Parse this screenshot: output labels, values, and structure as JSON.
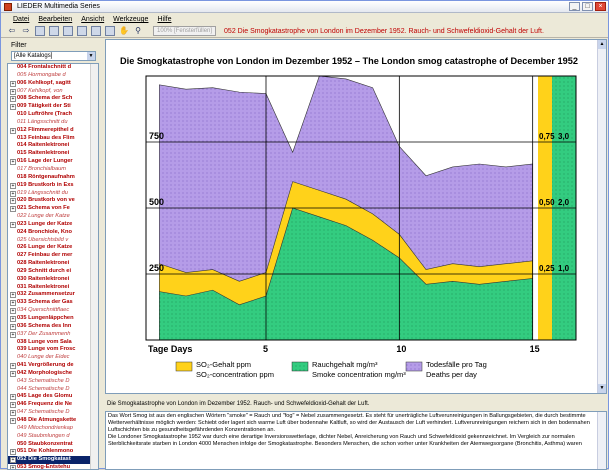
{
  "window": {
    "title": "LIEDER Multimedia Series",
    "controls": [
      "_",
      "□",
      "×"
    ]
  },
  "menu": [
    "Datei",
    "Bearbeiten",
    "Ansicht",
    "Werkzeuge",
    "Hilfe"
  ],
  "toolbar": {
    "zoom": "100% [Fensterfüllen]",
    "breadcrumb": "052 Die Smogkatastrophe von London im Dezember 1952. Rauch- und Schwefeldioxid-Gehalt der Luft."
  },
  "sidebar": {
    "filter_label": "Filter",
    "filter_value": "[Alle Katalogs]",
    "items": [
      {
        "text": "004 Frontalschnitt d",
        "exp": "",
        "style": "b"
      },
      {
        "text": "005 Hormongabe d",
        "exp": "",
        "style": "i"
      },
      {
        "text": "006 Kehlkopf, sagitt",
        "exp": "+",
        "style": "b"
      },
      {
        "text": "007 Kehlkopf, von",
        "exp": "+",
        "style": "i"
      },
      {
        "text": "008 Schema der Sch",
        "exp": "+",
        "style": "b"
      },
      {
        "text": "009 Tätigkeit der Sti",
        "exp": "+",
        "style": "b"
      },
      {
        "text": "010 Luftröhre (Trach",
        "exp": "",
        "style": "b"
      },
      {
        "text": "011 Längsschnitt du",
        "exp": "",
        "style": "i"
      },
      {
        "text": "012 Flimmerepithel d",
        "exp": "+",
        "style": "b"
      },
      {
        "text": "013 Feinbau des Flim",
        "exp": "",
        "style": "b"
      },
      {
        "text": "014 Raitenlektronei",
        "exp": "",
        "style": "b"
      },
      {
        "text": "015 Raitenlektronei",
        "exp": "",
        "style": "b"
      },
      {
        "text": "016 Lage der Lunger",
        "exp": "+",
        "style": "b"
      },
      {
        "text": "017 Bronchialbaum",
        "exp": "",
        "style": "i"
      },
      {
        "text": "018 Röntgenaufnahm",
        "exp": "",
        "style": "b"
      },
      {
        "text": "019 Brustkorb in Exs",
        "exp": "+",
        "style": "b"
      },
      {
        "text": "019 Längsschnitt du",
        "exp": "+",
        "style": "i"
      },
      {
        "text": "020 Brustkorb von ve",
        "exp": "+",
        "style": "b"
      },
      {
        "text": "021 Schema von Fe",
        "exp": "+",
        "style": "b"
      },
      {
        "text": "022 Lunge der Katze",
        "exp": "",
        "style": "i"
      },
      {
        "text": "023 Lunge der Katze",
        "exp": "+",
        "style": "b"
      },
      {
        "text": "024 Bronchiole, Kno",
        "exp": "",
        "style": "b"
      },
      {
        "text": "025 Übersichtsbild v",
        "exp": "",
        "style": "i"
      },
      {
        "text": "026 Lunge der Katze",
        "exp": "",
        "style": "b"
      },
      {
        "text": "027 Feinbau der mer",
        "exp": "",
        "style": "b"
      },
      {
        "text": "028 Raitenlektronei",
        "exp": "",
        "style": "b"
      },
      {
        "text": "029 Schnitt durch ei",
        "exp": "",
        "style": "b"
      },
      {
        "text": "030 Raitenlektronei",
        "exp": "",
        "style": "b"
      },
      {
        "text": "031 Raitenlektronei",
        "exp": "",
        "style": "b"
      },
      {
        "text": "032 Zusammensetzur",
        "exp": "+",
        "style": "b"
      },
      {
        "text": "033 Schema der Gas",
        "exp": "+",
        "style": "b"
      },
      {
        "text": "034 Querschnittflaec",
        "exp": "+",
        "style": "i"
      },
      {
        "text": "035 Lungenläppchen",
        "exp": "+",
        "style": "b"
      },
      {
        "text": "036 Schema des Inn",
        "exp": "+",
        "style": "b"
      },
      {
        "text": "037 Der Zusammenh",
        "exp": "+",
        "style": "i"
      },
      {
        "text": "038 Lunge vom Sala",
        "exp": "",
        "style": "b"
      },
      {
        "text": "039 Lunge vom Frosc",
        "exp": "",
        "style": "b"
      },
      {
        "text": "040 Lunge der Eidec",
        "exp": "",
        "style": "i"
      },
      {
        "text": "041 Vergrößerung de",
        "exp": "+",
        "style": "b"
      },
      {
        "text": "042 Morphologische",
        "exp": "+",
        "style": "b"
      },
      {
        "text": "043 Schematische D",
        "exp": "",
        "style": "i"
      },
      {
        "text": "044 Schematische D",
        "exp": "",
        "style": "i"
      },
      {
        "text": "045 Lage des Glomu",
        "exp": "+",
        "style": "b"
      },
      {
        "text": "046 Frequenz die Ne",
        "exp": "+",
        "style": "b"
      },
      {
        "text": "047 Schematische D",
        "exp": "+",
        "style": "i"
      },
      {
        "text": "048 Die Atmungskette",
        "exp": "+",
        "style": "b"
      },
      {
        "text": "049 Mitochondrienkap",
        "exp": "",
        "style": "i"
      },
      {
        "text": "049 Staubmlungen d",
        "exp": "",
        "style": "i"
      },
      {
        "text": "050 Staubkonzentrat",
        "exp": "",
        "style": "b"
      },
      {
        "text": "051 Die Kohlenmono",
        "exp": "+",
        "style": "b"
      },
      {
        "text": "052 Die Smogkatast",
        "exp": "+",
        "style": "sel"
      },
      {
        "text": "053 Smog-Entstehu",
        "exp": "+",
        "style": "b"
      }
    ]
  },
  "figure": {
    "title": "Die Smogkatastrophe von London im Dezember 1952 – The London smog catastrophe of December 1952",
    "left_ticks": [
      "750",
      "500",
      "250"
    ],
    "right_ticks_inner": [
      "0,75",
      "0,50",
      "0,25"
    ],
    "right_ticks_outer": [
      "3,0",
      "2,0",
      "1,0"
    ],
    "x_axis_label": "Tage Days",
    "x_ticks": [
      "5",
      "10",
      "15"
    ],
    "legend": [
      {
        "de": "SO₂-Gehalt ppm",
        "en": "SO₂-concentration ppm",
        "color": "#ffd21a"
      },
      {
        "de": "Rauchgehalt mg/m³",
        "en": "Smoke concentration mg/m³",
        "color": "#33cc80"
      },
      {
        "de": "Todesfälle pro Tag",
        "en": "Deaths per day",
        "color": "#b59ce8"
      }
    ]
  },
  "chart_data": {
    "type": "area",
    "title": "Die Smogkatastrophe von London im Dezember 1952 – The London smog catastrophe of December 1952",
    "xlabel": "Tage Days",
    "xlim": [
      1,
      15.5
    ],
    "ylim": [
      0,
      900
    ],
    "x": [
      1,
      2,
      3,
      4,
      5,
      6,
      7,
      8,
      9,
      10,
      11,
      12,
      13,
      14,
      15
    ],
    "series": [
      {
        "name": "Todesfälle pro Tag",
        "values": [
          870,
          855,
          860,
          845,
          840,
          640,
          900,
          890,
          860,
          660,
          560,
          590,
          600,
          590,
          600
        ]
      },
      {
        "name": "Rauchgehalt mg/m³",
        "values": [
          165,
          150,
          170,
          120,
          150,
          450,
          420,
          390,
          340,
          280,
          190,
          200,
          190,
          200,
          210
        ]
      },
      {
        "name": "SO₂-Gehalt ppm",
        "values": [
          260,
          230,
          240,
          200,
          230,
          540,
          510,
          480,
          430,
          360,
          240,
          260,
          250,
          260,
          270
        ]
      }
    ]
  },
  "caption": "Die Smogkatastrophe von London im Dezember 1952. Rauch- und Schwefeldioxid-Gehalt der Luft.",
  "description": [
    "Das Wort Smog ist aus den englischen Wörtern \"smoke\" = Rauch und \"fog\" = Nebel zusammengesetzt. Es steht für unerträgliche Luftverunreinigungen in Ballungsgebieten, die durch bestimmte Wetterverhältnisse möglich werden: Schiebt oder lagert sich warme Luft über bodennahe Kaltluft, so wird der Austausch der Luft verhindert. Luftverunreinigungen reichern sich in den bodennahen Luftschichten bis zu gesundheitsgefährdenden Konzentrationen an.",
    "Die Londoner Smogkatastrophe 1952 war durch eine derartige Inversionswetterlage, dichter Nebel, Anreicherung von Rauch und Schwefeldioxid gekennzeichnet. Im Vergleich zur normalen Sterblichkeitsrate starben in London 4000 Menschen infolge der Smogkatastrophe. Besonders Menschen, die schon vorher unter Krankheiten der Atemwegsorgane (Bronchitis, Asthma) waren"
  ]
}
